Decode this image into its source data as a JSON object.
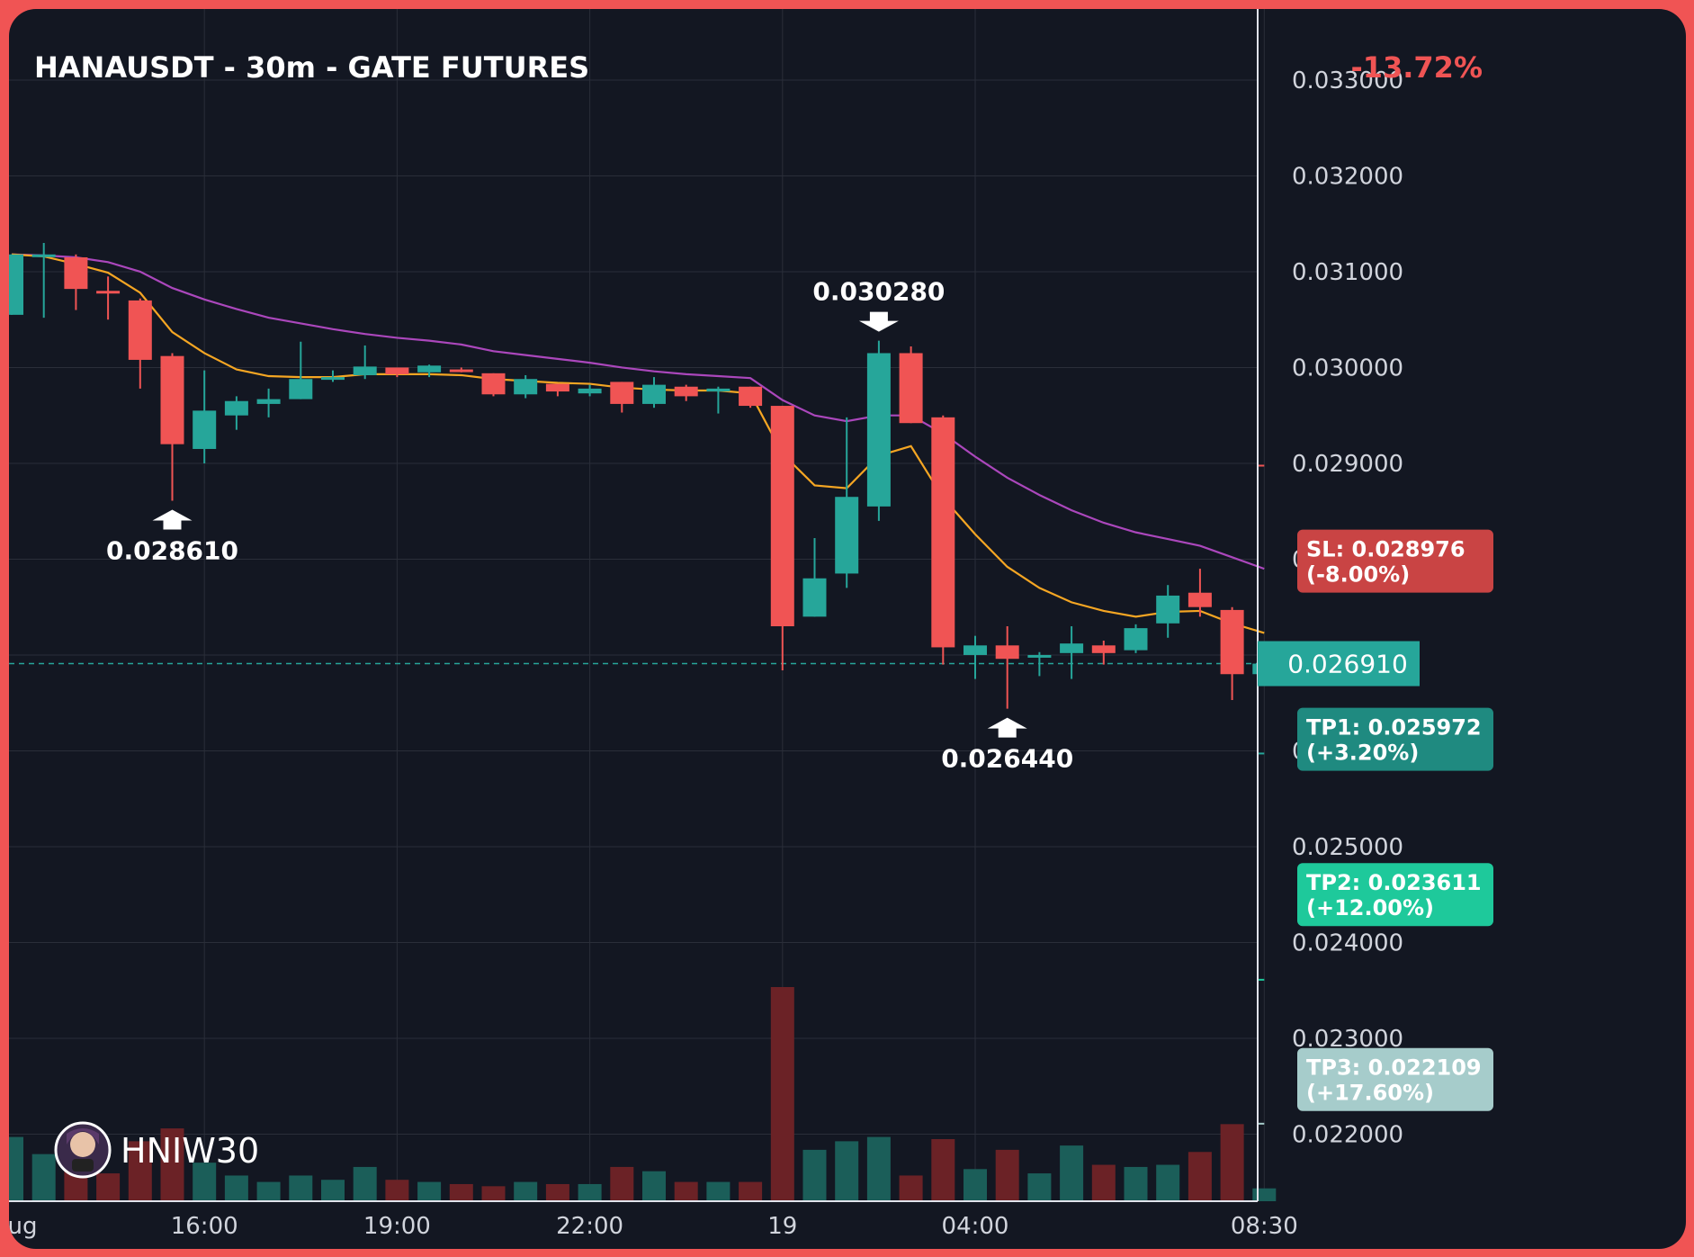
{
  "header": {
    "title": "HANAUSDT - 30m - GATE FUTURES",
    "change": "-13.72%"
  },
  "watermark": {
    "name": "HNIW30"
  },
  "colors": {
    "background": "#131722",
    "frame": "#f05454",
    "up": "#26a69a",
    "down": "#f05454",
    "ema_fast": "#f5a623",
    "ema_slow": "#ab47bc",
    "grid": "#2a2e39",
    "text": "#d1d4dc"
  },
  "chart_data": {
    "type": "candlestick",
    "title": "HANAUSDT - 30m - GATE FUTURES",
    "ylim": [
      0.0213,
      0.0335
    ],
    "grid": true,
    "y_ticks": [
      "0.033000",
      "0.032000",
      "0.031000",
      "0.030000",
      "0.029000",
      "0.028000",
      "0.026000",
      "0.025000",
      "0.024000",
      "0.023000",
      "0.022000"
    ],
    "y_tick_values": [
      0.033,
      0.032,
      0.031,
      0.03,
      0.029,
      0.028,
      0.026,
      0.025,
      0.024,
      0.023,
      0.022
    ],
    "x_ticks": [
      {
        "label": "ug",
        "index": 0
      },
      {
        "label": "16:00",
        "index": 6
      },
      {
        "label": "19:00",
        "index": 12
      },
      {
        "label": "22:00",
        "index": 18
      },
      {
        "label": "19",
        "index": 24
      },
      {
        "label": "04:00",
        "index": 30
      },
      {
        "label": "08:30",
        "index": 39
      }
    ],
    "candles": [
      {
        "o": 0.03055,
        "h": 0.03118,
        "l": 0.03055,
        "c": 0.03118,
        "v": 0.3
      },
      {
        "o": 0.03118,
        "h": 0.0313,
        "l": 0.03052,
        "c": 0.03118,
        "v": 0.22
      },
      {
        "o": 0.03115,
        "h": 0.03118,
        "l": 0.0306,
        "c": 0.03082,
        "v": 0.18
      },
      {
        "o": 0.0308,
        "h": 0.03095,
        "l": 0.0305,
        "c": 0.03078,
        "v": 0.13
      },
      {
        "o": 0.0307,
        "h": 0.03072,
        "l": 0.02978,
        "c": 0.03008,
        "v": 0.28
      },
      {
        "o": 0.03012,
        "h": 0.03015,
        "l": 0.02861,
        "c": 0.0292,
        "v": 0.34
      },
      {
        "o": 0.02915,
        "h": 0.02997,
        "l": 0.029,
        "c": 0.02955,
        "v": 0.18
      },
      {
        "o": 0.0295,
        "h": 0.0297,
        "l": 0.02935,
        "c": 0.02965,
        "v": 0.12
      },
      {
        "o": 0.02962,
        "h": 0.02978,
        "l": 0.02948,
        "c": 0.02967,
        "v": 0.09
      },
      {
        "o": 0.02967,
        "h": 0.03027,
        "l": 0.02967,
        "c": 0.02988,
        "v": 0.12
      },
      {
        "o": 0.02988,
        "h": 0.02997,
        "l": 0.02985,
        "c": 0.0299,
        "v": 0.1
      },
      {
        "o": 0.02992,
        "h": 0.03023,
        "l": 0.02988,
        "c": 0.03001,
        "v": 0.16
      },
      {
        "o": 0.03,
        "h": 0.03,
        "l": 0.0299,
        "c": 0.02993,
        "v": 0.1
      },
      {
        "o": 0.02995,
        "h": 0.03003,
        "l": 0.0299,
        "c": 0.03002,
        "v": 0.09
      },
      {
        "o": 0.02998,
        "h": 0.03,
        "l": 0.02995,
        "c": 0.02996,
        "v": 0.08
      },
      {
        "o": 0.02994,
        "h": 0.02994,
        "l": 0.0297,
        "c": 0.02972,
        "v": 0.07
      },
      {
        "o": 0.02972,
        "h": 0.02992,
        "l": 0.02968,
        "c": 0.02988,
        "v": 0.09
      },
      {
        "o": 0.02983,
        "h": 0.02983,
        "l": 0.0297,
        "c": 0.02975,
        "v": 0.08
      },
      {
        "o": 0.02973,
        "h": 0.02982,
        "l": 0.0297,
        "c": 0.02978,
        "v": 0.08
      },
      {
        "o": 0.02985,
        "h": 0.02985,
        "l": 0.02953,
        "c": 0.02962,
        "v": 0.16
      },
      {
        "o": 0.02962,
        "h": 0.0299,
        "l": 0.02958,
        "c": 0.02982,
        "v": 0.14
      },
      {
        "o": 0.0298,
        "h": 0.02982,
        "l": 0.02965,
        "c": 0.0297,
        "v": 0.09
      },
      {
        "o": 0.02975,
        "h": 0.0298,
        "l": 0.02952,
        "c": 0.02978,
        "v": 0.09
      },
      {
        "o": 0.0298,
        "h": 0.0298,
        "l": 0.02958,
        "c": 0.0296,
        "v": 0.09
      },
      {
        "o": 0.0296,
        "h": 0.0296,
        "l": 0.02684,
        "c": 0.0273,
        "v": 1.0
      },
      {
        "o": 0.0274,
        "h": 0.02822,
        "l": 0.0274,
        "c": 0.0278,
        "v": 0.24
      },
      {
        "o": 0.02785,
        "h": 0.02948,
        "l": 0.0277,
        "c": 0.02865,
        "v": 0.28
      },
      {
        "o": 0.02855,
        "h": 0.03028,
        "l": 0.0284,
        "c": 0.03015,
        "v": 0.3
      },
      {
        "o": 0.03015,
        "h": 0.03022,
        "l": 0.02942,
        "c": 0.02942,
        "v": 0.12
      },
      {
        "o": 0.02948,
        "h": 0.0295,
        "l": 0.0269,
        "c": 0.02708,
        "v": 0.29
      },
      {
        "o": 0.027,
        "h": 0.0272,
        "l": 0.02675,
        "c": 0.0271,
        "v": 0.15
      },
      {
        "o": 0.0271,
        "h": 0.0273,
        "l": 0.02644,
        "c": 0.02696,
        "v": 0.24
      },
      {
        "o": 0.027,
        "h": 0.02703,
        "l": 0.02678,
        "c": 0.027,
        "v": 0.13
      },
      {
        "o": 0.02702,
        "h": 0.0273,
        "l": 0.02675,
        "c": 0.02712,
        "v": 0.26
      },
      {
        "o": 0.0271,
        "h": 0.02715,
        "l": 0.0269,
        "c": 0.02702,
        "v": 0.17
      },
      {
        "o": 0.02705,
        "h": 0.02732,
        "l": 0.02702,
        "c": 0.02728,
        "v": 0.16
      },
      {
        "o": 0.02733,
        "h": 0.02773,
        "l": 0.02718,
        "c": 0.02762,
        "v": 0.17
      },
      {
        "o": 0.02765,
        "h": 0.0279,
        "l": 0.0274,
        "c": 0.0275,
        "v": 0.23
      },
      {
        "o": 0.02747,
        "h": 0.0275,
        "l": 0.02653,
        "c": 0.0268,
        "v": 0.36
      },
      {
        "o": 0.0268,
        "h": 0.02693,
        "l": 0.0268,
        "c": 0.02691,
        "v": 0.06
      }
    ],
    "ema_fast": [
      0.03118,
      0.03116,
      0.03108,
      0.03099,
      0.03078,
      0.03037,
      0.03015,
      0.02998,
      0.02991,
      0.0299,
      0.0299,
      0.02993,
      0.02993,
      0.02993,
      0.02992,
      0.02988,
      0.02986,
      0.02984,
      0.02983,
      0.02979,
      0.02977,
      0.02976,
      0.02976,
      0.02973,
      0.0291,
      0.02877,
      0.02874,
      0.02908,
      0.02918,
      0.02864,
      0.02826,
      0.02792,
      0.0277,
      0.02755,
      0.02746,
      0.0274,
      0.02745,
      0.02746,
      0.02733,
      0.02723
    ],
    "ema_slow": [
      0.03118,
      0.03117,
      0.03115,
      0.0311,
      0.031,
      0.03083,
      0.03071,
      0.03061,
      0.03052,
      0.03046,
      0.0304,
      0.03035,
      0.03031,
      0.03028,
      0.03024,
      0.03017,
      0.03013,
      0.03009,
      0.03005,
      0.03,
      0.02996,
      0.02993,
      0.02991,
      0.02989,
      0.02966,
      0.0295,
      0.02944,
      0.0295,
      0.0295,
      0.02931,
      0.02907,
      0.02885,
      0.02867,
      0.02851,
      0.02838,
      0.02828,
      0.02821,
      0.02814,
      0.02802,
      0.0279
    ],
    "annotations": [
      {
        "label": "0.028610",
        "index": 5,
        "price": 0.02861,
        "kind": "low"
      },
      {
        "label": "0.030280",
        "index": 27,
        "price": 0.03028,
        "kind": "high"
      },
      {
        "label": "0.026440",
        "index": 31,
        "price": 0.02644,
        "kind": "low"
      }
    ],
    "current_price": {
      "label": "0.026910",
      "value": 0.02691
    },
    "levels": [
      {
        "name": "SL",
        "label": "SL: 0.028976",
        "pct": "(-8.00%)",
        "price": 0.028976,
        "color": "#f05454",
        "box": "#c94444"
      },
      {
        "name": "TP1",
        "label": "TP1: 0.025972",
        "pct": "(+3.20%)",
        "price": 0.025972,
        "color": "#26a69a",
        "box": "#1f8a80"
      },
      {
        "name": "TP2",
        "label": "TP2: 0.023611",
        "pct": "(+12.00%)",
        "price": 0.023611,
        "color": "#1ec99b",
        "box": "#1ec99b"
      },
      {
        "name": "TP3",
        "label": "TP3: 0.022109",
        "pct": "(+17.60%)",
        "price": 0.022109,
        "color": "#a6cccb",
        "box": "#a6cccb"
      }
    ],
    "entry_price": 0.02685
  }
}
